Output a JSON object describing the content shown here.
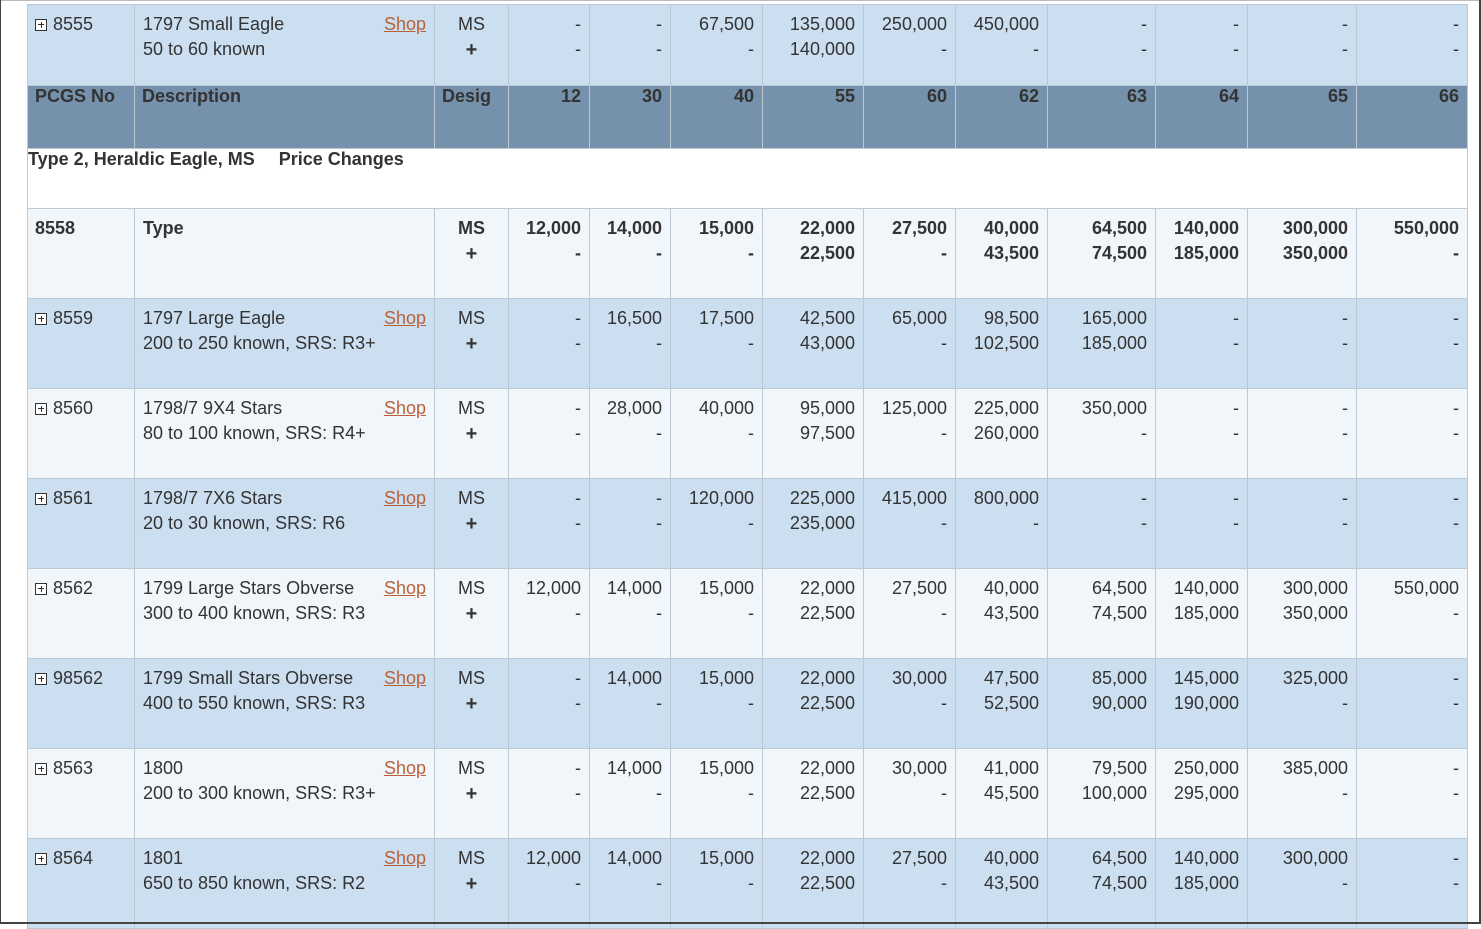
{
  "header": {
    "pcgs_no": "PCGS No",
    "description": "Description",
    "desig": "Desig",
    "grades": [
      "12",
      "30",
      "40",
      "55",
      "60",
      "62",
      "63",
      "64",
      "65",
      "66"
    ]
  },
  "section": {
    "title": "Type 2, Heraldic Eagle, MS",
    "price_changes": "Price Changes"
  },
  "shop_label": "Shop",
  "plus_label": "+",
  "top_row": {
    "pcgs": "8555",
    "name": "1797 Small Eagle",
    "known": "50 to 60 known",
    "desig": "MS",
    "prices": [
      "-",
      "-",
      "67,500",
      "135,000",
      "250,000",
      "450,000",
      "-",
      "-",
      "-",
      "-"
    ],
    "plus_prices": [
      "-",
      "-",
      "-",
      "140,000",
      "-",
      "-",
      "-",
      "-",
      "-",
      "-"
    ]
  },
  "type_row": {
    "pcgs": "8558",
    "name": "Type",
    "desig": "MS",
    "prices": [
      "12,000",
      "14,000",
      "15,000",
      "22,000",
      "27,500",
      "40,000",
      "64,500",
      "140,000",
      "300,000",
      "550,000"
    ],
    "plus_prices": [
      "-",
      "-",
      "-",
      "22,500",
      "-",
      "43,500",
      "74,500",
      "185,000",
      "350,000",
      "-"
    ]
  },
  "rows": [
    {
      "pcgs": "8559",
      "name": "1797 Large Eagle",
      "known": "200 to 250 known, SRS: R3+",
      "desig": "MS",
      "prices": [
        "-",
        "16,500",
        "17,500",
        "42,500",
        "65,000",
        "98,500",
        "165,000",
        "-",
        "-",
        "-"
      ],
      "plus_prices": [
        "-",
        "-",
        "-",
        "43,000",
        "-",
        "102,500",
        "185,000",
        "-",
        "-",
        "-"
      ]
    },
    {
      "pcgs": "8560",
      "name": "1798/7 9X4 Stars",
      "known": "80 to 100 known, SRS: R4+",
      "desig": "MS",
      "prices": [
        "-",
        "28,000",
        "40,000",
        "95,000",
        "125,000",
        "225,000",
        "350,000",
        "-",
        "-",
        "-"
      ],
      "plus_prices": [
        "-",
        "-",
        "-",
        "97,500",
        "-",
        "260,000",
        "-",
        "-",
        "-",
        "-"
      ]
    },
    {
      "pcgs": "8561",
      "name": "1798/7 7X6 Stars",
      "known": "20 to 30 known, SRS: R6",
      "desig": "MS",
      "prices": [
        "-",
        "-",
        "120,000",
        "225,000",
        "415,000",
        "800,000",
        "-",
        "-",
        "-",
        "-"
      ],
      "plus_prices": [
        "-",
        "-",
        "-",
        "235,000",
        "-",
        "-",
        "-",
        "-",
        "-",
        "-"
      ]
    },
    {
      "pcgs": "8562",
      "name": "1799 Large Stars Obverse",
      "known": "300 to 400 known, SRS: R3",
      "desig": "MS",
      "prices": [
        "12,000",
        "14,000",
        "15,000",
        "22,000",
        "27,500",
        "40,000",
        "64,500",
        "140,000",
        "300,000",
        "550,000"
      ],
      "plus_prices": [
        "-",
        "-",
        "-",
        "22,500",
        "-",
        "43,500",
        "74,500",
        "185,000",
        "350,000",
        "-"
      ]
    },
    {
      "pcgs": "98562",
      "name": "1799 Small Stars Obverse",
      "known": "400 to 550 known, SRS: R3",
      "desig": "MS",
      "prices": [
        "-",
        "14,000",
        "15,000",
        "22,000",
        "30,000",
        "47,500",
        "85,000",
        "145,000",
        "325,000",
        "-"
      ],
      "plus_prices": [
        "-",
        "-",
        "-",
        "22,500",
        "-",
        "52,500",
        "90,000",
        "190,000",
        "-",
        "-"
      ]
    },
    {
      "pcgs": "8563",
      "name": "1800",
      "known": "200 to 300 known, SRS: R3+",
      "desig": "MS",
      "prices": [
        "-",
        "14,000",
        "15,000",
        "22,000",
        "30,000",
        "41,000",
        "79,500",
        "250,000",
        "385,000",
        "-"
      ],
      "plus_prices": [
        "-",
        "-",
        "-",
        "22,500",
        "-",
        "45,500",
        "100,000",
        "295,000",
        "-",
        "-"
      ]
    },
    {
      "pcgs": "8564",
      "name": "1801",
      "known": "650 to 850 known, SRS: R2",
      "desig": "MS",
      "prices": [
        "12,000",
        "14,000",
        "15,000",
        "22,000",
        "27,500",
        "40,000",
        "64,500",
        "140,000",
        "300,000",
        "-"
      ],
      "plus_prices": [
        "-",
        "-",
        "-",
        "22,500",
        "-",
        "43,500",
        "74,500",
        "185,000",
        "-",
        "-"
      ]
    }
  ],
  "colors": {
    "header_bg": "#7591ab",
    "row_blue": "#cbdff1",
    "row_light": "#f1f6fb",
    "shop_link": "#b8623a",
    "grid_border": "#bcc8d4"
  }
}
